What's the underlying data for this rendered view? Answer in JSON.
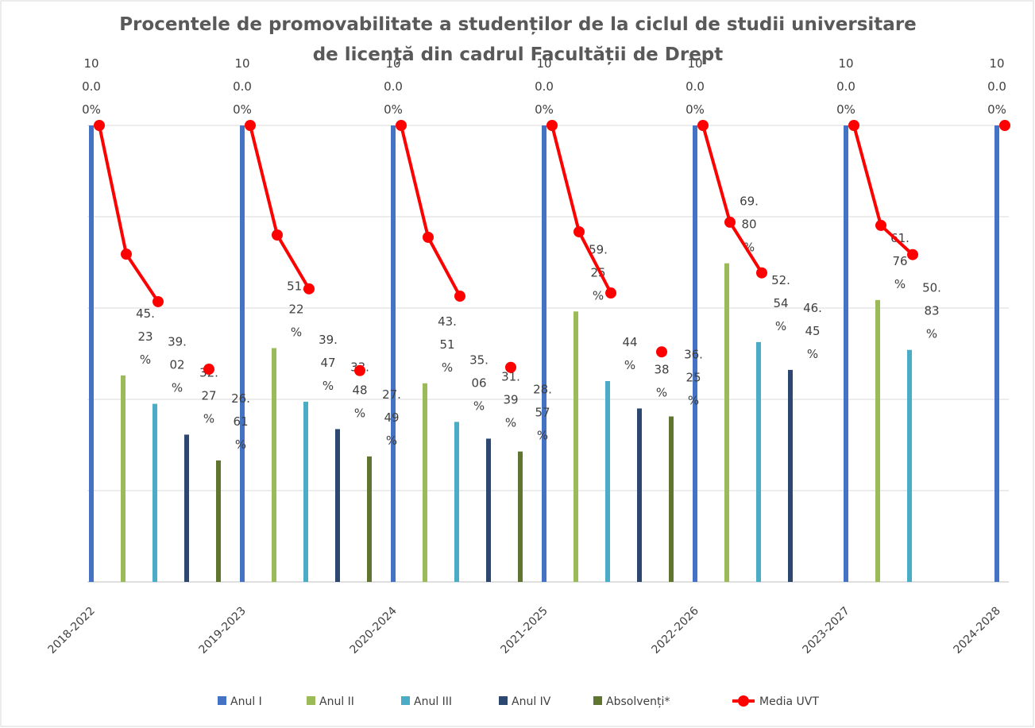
{
  "chart_data": {
    "type": "bar",
    "title": "Procentele de promovabilitate a studenților de la ciclul de studii universitare de licență din cadrul Facultății de Drept",
    "categories": [
      "2018-2022",
      "2019-2023",
      "2020-2024",
      "2021-2025",
      "2022-2026",
      "2023-2027",
      "2024-2028"
    ],
    "ylim": [
      0,
      100
    ],
    "yticks": [
      0,
      20,
      40,
      60,
      80,
      100
    ],
    "grid": true,
    "legend": "bottom",
    "series": [
      {
        "name": "Anul I",
        "color": "#4472c4",
        "values": [
          100,
          100,
          100,
          100,
          100,
          100,
          100
        ],
        "value_labels": [
          "100.00%",
          "100.00%",
          "100.00%",
          "100.00%",
          "100.00%",
          "100.00%",
          "100.00%"
        ]
      },
      {
        "name": "Anul II",
        "color": "#9bbb59",
        "values": [
          45.23,
          51.22,
          43.51,
          59.25,
          69.8,
          61.76,
          null
        ],
        "value_labels": [
          "45.23%",
          "51.22%",
          "43.51%",
          "59.25%",
          "69.80%",
          "61.76%",
          null
        ]
      },
      {
        "name": "Anul III",
        "color": "#4bacc6",
        "values": [
          39.02,
          39.47,
          35.06,
          44,
          52.54,
          50.83,
          null
        ],
        "value_labels": [
          "39.02%",
          "39.47%",
          "35.06%",
          "44%",
          "52.54%",
          "50.83%",
          null
        ]
      },
      {
        "name": "Anul IV",
        "color": "#2c4770",
        "values": [
          32.27,
          33.48,
          31.39,
          38,
          46.45,
          null,
          null
        ],
        "value_labels": [
          "32.27%",
          "33.48%",
          "31.39%",
          "38%",
          "46.45%",
          null,
          null
        ]
      },
      {
        "name": "Absolvenți*",
        "color": "#5f7530",
        "values": [
          26.61,
          27.49,
          28.57,
          36.25,
          null,
          null,
          null
        ],
        "value_labels": [
          "26.61%",
          "27.49%",
          "28.57%",
          "36.25%",
          null,
          null,
          null
        ]
      },
      {
        "name": "Media UVT",
        "type": "line",
        "color": "#ff0000",
        "values": [
          [
            100,
            71.8,
            61.4,
            null,
            46.6
          ],
          [
            100,
            76,
            64.2,
            null,
            46.3
          ],
          [
            100,
            75.5,
            62.6,
            null,
            47
          ],
          [
            100,
            76.7,
            63.3,
            null,
            50.4
          ],
          [
            100,
            78.8,
            67.7,
            null,
            null
          ],
          [
            100,
            78.1,
            71.7,
            null,
            null
          ],
          [
            100,
            null,
            null,
            null,
            null
          ]
        ]
      }
    ]
  }
}
